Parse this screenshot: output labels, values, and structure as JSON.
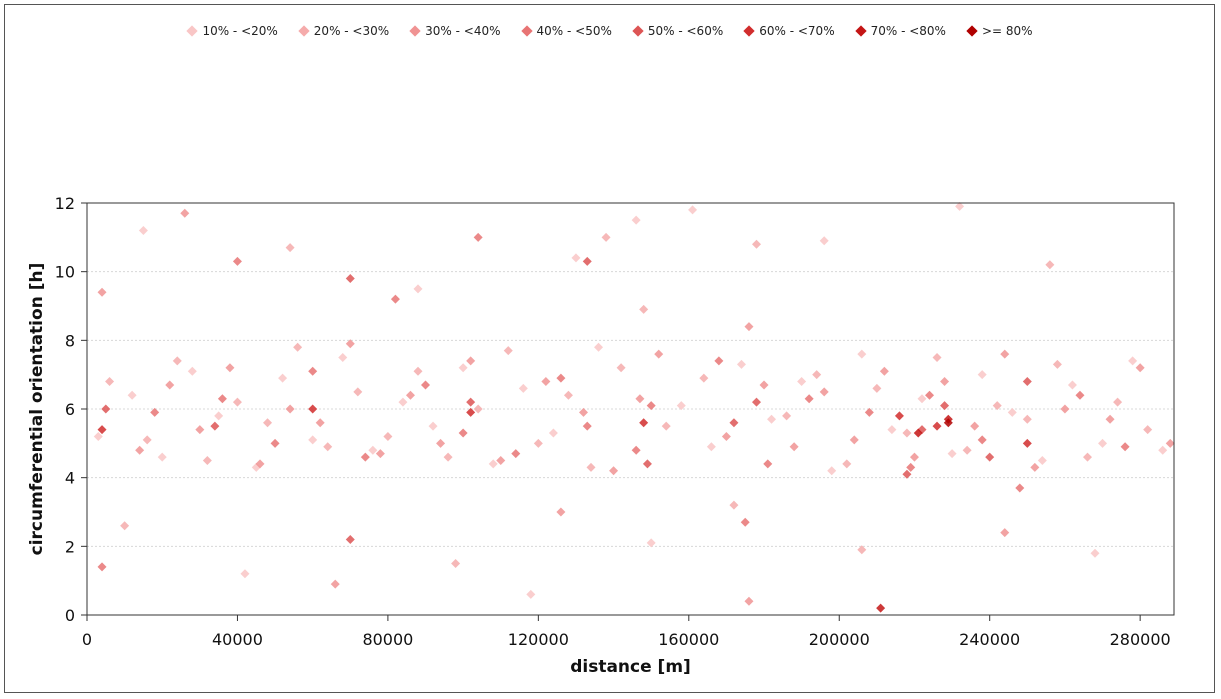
{
  "chart_data": {
    "type": "scatter",
    "title": "",
    "xlabel": "distance [m]",
    "ylabel": "circumferential orientation [h]",
    "xlim": [
      0,
      289000
    ],
    "ylim": [
      0,
      12
    ],
    "x_ticks": [
      "0",
      "40000",
      "80000",
      "120000",
      "160000",
      "200000",
      "240000",
      "280000"
    ],
    "y_ticks": [
      "0",
      "2",
      "4",
      "6",
      "8",
      "10",
      "12"
    ],
    "grid": true,
    "legend_position": "top",
    "series": [
      {
        "name": "10% - <20%",
        "color": "#f9c6c6",
        "points": [
          [
            3000,
            5.2
          ],
          [
            12000,
            6.4
          ],
          [
            20000,
            4.6
          ],
          [
            28000,
            7.1
          ],
          [
            35000,
            5.8
          ],
          [
            45000,
            4.3
          ],
          [
            52000,
            6.9
          ],
          [
            60000,
            5.1
          ],
          [
            68000,
            7.5
          ],
          [
            76000,
            4.8
          ],
          [
            84000,
            6.2
          ],
          [
            92000,
            5.5
          ],
          [
            100000,
            7.2
          ],
          [
            108000,
            4.4
          ],
          [
            116000,
            6.6
          ],
          [
            124000,
            5.3
          ],
          [
            130000,
            10.4
          ],
          [
            136000,
            7.8
          ],
          [
            146000,
            11.5
          ],
          [
            150000,
            2.1
          ],
          [
            158000,
            6.1
          ],
          [
            161000,
            11.8
          ],
          [
            166000,
            4.9
          ],
          [
            174000,
            7.3
          ],
          [
            182000,
            5.7
          ],
          [
            190000,
            6.8
          ],
          [
            198000,
            4.2
          ],
          [
            206000,
            7.6
          ],
          [
            214000,
            5.4
          ],
          [
            222000,
            6.3
          ],
          [
            230000,
            4.7
          ],
          [
            238000,
            7.0
          ],
          [
            246000,
            5.9
          ],
          [
            254000,
            4.5
          ],
          [
            262000,
            6.7
          ],
          [
            270000,
            5.0
          ],
          [
            278000,
            7.4
          ],
          [
            286000,
            4.8
          ],
          [
            15000,
            11.2
          ],
          [
            42000,
            1.2
          ],
          [
            88000,
            9.5
          ],
          [
            118000,
            0.6
          ],
          [
            196000,
            10.9
          ],
          [
            232000,
            11.9
          ],
          [
            268000,
            1.8
          ]
        ]
      },
      {
        "name": "20% - <30%",
        "color": "#f5abab",
        "points": [
          [
            6000,
            6.8
          ],
          [
            16000,
            5.1
          ],
          [
            24000,
            7.4
          ],
          [
            32000,
            4.5
          ],
          [
            40000,
            6.2
          ],
          [
            48000,
            5.6
          ],
          [
            56000,
            7.8
          ],
          [
            64000,
            4.9
          ],
          [
            72000,
            6.5
          ],
          [
            80000,
            5.2
          ],
          [
            88000,
            7.1
          ],
          [
            96000,
            4.6
          ],
          [
            104000,
            6.0
          ],
          [
            112000,
            7.7
          ],
          [
            120000,
            5.0
          ],
          [
            128000,
            6.4
          ],
          [
            134000,
            4.3
          ],
          [
            142000,
            7.2
          ],
          [
            148000,
            8.9
          ],
          [
            154000,
            5.5
          ],
          [
            164000,
            6.9
          ],
          [
            172000,
            3.2
          ],
          [
            178000,
            10.8
          ],
          [
            186000,
            5.8
          ],
          [
            194000,
            7.0
          ],
          [
            202000,
            4.4
          ],
          [
            210000,
            6.6
          ],
          [
            218000,
            5.3
          ],
          [
            226000,
            7.5
          ],
          [
            234000,
            4.8
          ],
          [
            242000,
            6.1
          ],
          [
            250000,
            5.7
          ],
          [
            258000,
            7.3
          ],
          [
            266000,
            4.6
          ],
          [
            274000,
            6.2
          ],
          [
            282000,
            5.4
          ],
          [
            10000,
            2.6
          ],
          [
            54000,
            10.7
          ],
          [
            98000,
            1.5
          ],
          [
            138000,
            11.0
          ],
          [
            206000,
            1.9
          ],
          [
            256000,
            10.2
          ]
        ]
      },
      {
        "name": "30% - <40%",
        "color": "#f09393",
        "points": [
          [
            4000,
            9.4
          ],
          [
            14000,
            4.8
          ],
          [
            22000,
            6.7
          ],
          [
            30000,
            5.4
          ],
          [
            38000,
            7.2
          ],
          [
            46000,
            4.4
          ],
          [
            54000,
            6.0
          ],
          [
            62000,
            5.6
          ],
          [
            70000,
            7.9
          ],
          [
            78000,
            4.7
          ],
          [
            86000,
            6.4
          ],
          [
            94000,
            5.0
          ],
          [
            102000,
            7.4
          ],
          [
            110000,
            4.5
          ],
          [
            122000,
            6.8
          ],
          [
            132000,
            5.9
          ],
          [
            140000,
            4.2
          ],
          [
            147000,
            6.3
          ],
          [
            152000,
            7.6
          ],
          [
            170000,
            5.2
          ],
          [
            176000,
            8.4
          ],
          [
            180000,
            6.7
          ],
          [
            188000,
            4.9
          ],
          [
            196000,
            6.5
          ],
          [
            204000,
            5.1
          ],
          [
            212000,
            7.1
          ],
          [
            220000,
            4.6
          ],
          [
            228000,
            6.8
          ],
          [
            236000,
            5.5
          ],
          [
            244000,
            7.6
          ],
          [
            252000,
            4.3
          ],
          [
            260000,
            6.0
          ],
          [
            272000,
            5.7
          ],
          [
            280000,
            7.2
          ],
          [
            288000,
            5.0
          ],
          [
            26000,
            11.7
          ],
          [
            66000,
            0.9
          ],
          [
            126000,
            3.0
          ],
          [
            176000,
            0.4
          ],
          [
            244000,
            2.4
          ]
        ]
      },
      {
        "name": "40% - <50%",
        "color": "#e87474",
        "points": [
          [
            4000,
            1.4
          ],
          [
            18000,
            5.9
          ],
          [
            36000,
            6.3
          ],
          [
            50000,
            5.0
          ],
          [
            60000,
            7.1
          ],
          [
            74000,
            4.6
          ],
          [
            90000,
            6.7
          ],
          [
            100000,
            5.3
          ],
          [
            114000,
            4.7
          ],
          [
            126000,
            6.9
          ],
          [
            133000,
            5.5
          ],
          [
            146000,
            4.8
          ],
          [
            150000,
            6.1
          ],
          [
            168000,
            7.4
          ],
          [
            175000,
            2.7
          ],
          [
            181000,
            4.4
          ],
          [
            192000,
            6.3
          ],
          [
            208000,
            5.9
          ],
          [
            219000,
            4.3
          ],
          [
            224000,
            6.4
          ],
          [
            238000,
            5.1
          ],
          [
            248000,
            3.7
          ],
          [
            264000,
            6.4
          ],
          [
            276000,
            4.9
          ],
          [
            82000,
            9.2
          ],
          [
            40000,
            10.3
          ],
          [
            104000,
            11.0
          ]
        ]
      },
      {
        "name": "50% - <60%",
        "color": "#dd5555",
        "points": [
          [
            5000,
            6.0
          ],
          [
            34000,
            5.5
          ],
          [
            70000,
            9.8
          ],
          [
            102000,
            6.2
          ],
          [
            133000,
            10.3
          ],
          [
            149000,
            4.4
          ],
          [
            172000,
            5.6
          ],
          [
            178000,
            6.2
          ],
          [
            218000,
            4.1
          ],
          [
            222000,
            5.4
          ],
          [
            228000,
            6.1
          ],
          [
            240000,
            4.6
          ],
          [
            250000,
            6.8
          ],
          [
            70000,
            2.2
          ]
        ]
      },
      {
        "name": "60% - <70%",
        "color": "#d12d2d",
        "points": [
          [
            4000,
            5.4
          ],
          [
            60000,
            6.0
          ],
          [
            102000,
            5.9
          ],
          [
            148000,
            5.6
          ],
          [
            216000,
            5.8
          ],
          [
            226000,
            5.5
          ],
          [
            250000,
            5.0
          ]
        ]
      },
      {
        "name": "70% - <80%",
        "color": "#c41515",
        "points": [
          [
            211000,
            0.2
          ],
          [
            229000,
            5.7
          ],
          [
            221000,
            5.3
          ]
        ]
      },
      {
        "name": ">= 80%",
        "color": "#b00000",
        "points": [
          [
            229000,
            5.6
          ]
        ]
      }
    ]
  }
}
